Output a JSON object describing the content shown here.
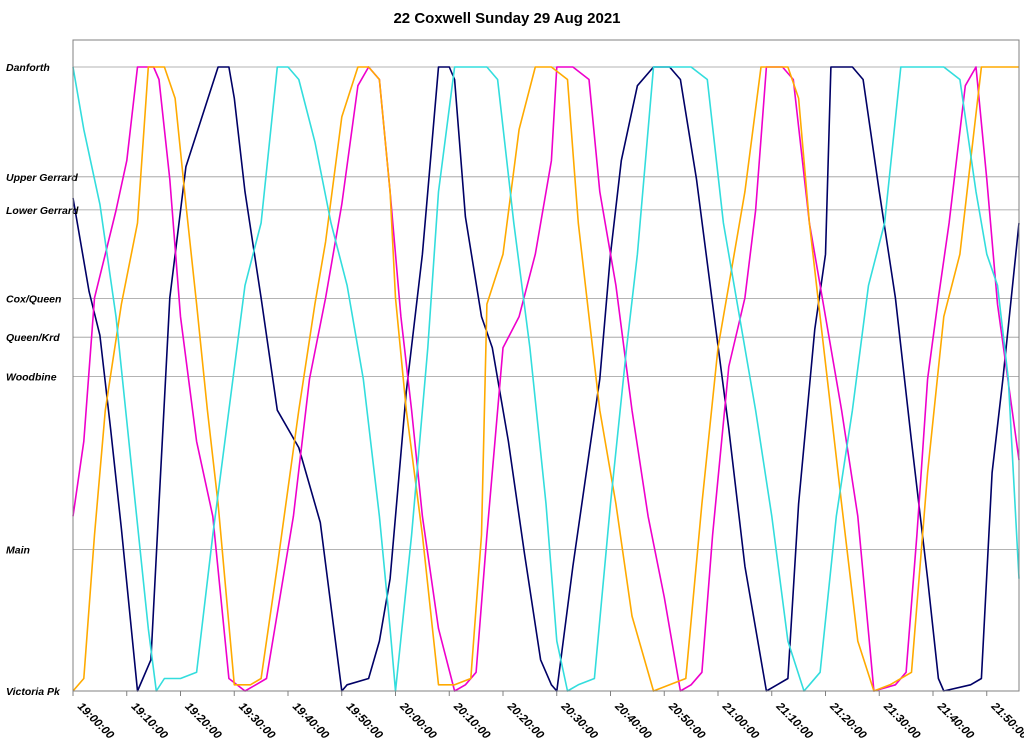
{
  "chart_data": {
    "type": "line",
    "title": "22 Coxwell Sunday 29 Aug 2021",
    "xlabel": "",
    "ylabel": "",
    "xlim": [
      "19:00:00",
      "21:56:00"
    ],
    "x_ticks": [
      "19:00:00",
      "19:10:00",
      "19:20:00",
      "19:30:00",
      "19:40:00",
      "19:50:00",
      "20:00:00",
      "20:10:00",
      "20:20:00",
      "20:30:00",
      "20:40:00",
      "20:50:00",
      "21:00:00",
      "21:10:00",
      "21:20:00",
      "21:30:00",
      "21:40:00",
      "21:50:00"
    ],
    "y_stops": [
      {
        "name": "Danforth",
        "pos": 0
      },
      {
        "name": "Upper Gerrard",
        "pos": 0.176
      },
      {
        "name": "Lower Gerrard",
        "pos": 0.229
      },
      {
        "name": "Cox/Queen",
        "pos": 0.371
      },
      {
        "name": "Queen/Krd",
        "pos": 0.433
      },
      {
        "name": "Woodbine",
        "pos": 0.496
      },
      {
        "name": "Main",
        "pos": 0.773
      },
      {
        "name": "Victoria Pk",
        "pos": 1.0
      }
    ],
    "grid": true,
    "legend": "none",
    "series": [
      {
        "color": "#000066",
        "x": [
          "19:00:00",
          "19:03:00",
          "19:05:00",
          "19:07:00",
          "19:09:00",
          "19:12:00",
          "19:13:00",
          "19:14:30",
          "19:16:00",
          "19:18:00",
          "19:21:00",
          "19:24:00",
          "19:27:00",
          "19:29:00",
          "19:30:00",
          "19:32:00",
          "19:35:00",
          "19:38:00",
          "19:42:00",
          "19:46:00",
          "19:50:00",
          "19:51:00",
          "19:55:00",
          "19:57:00",
          "19:59:00",
          "20:02:00",
          "20:05:00",
          "20:08:00",
          "20:10:00",
          "20:11:00",
          "20:13:00",
          "20:16:00",
          "20:18:00",
          "20:21:00",
          "20:24:00",
          "20:27:00",
          "20:29:00",
          "20:30:00",
          "20:33:00",
          "20:36:00",
          "20:38:00",
          "20:40:00",
          "20:42:00",
          "20:45:00",
          "20:48:00",
          "20:51:00",
          "20:53:00",
          "20:56:00",
          "20:59:00",
          "21:02:00",
          "21:05:00",
          "21:09:00",
          "21:11:00",
          "21:13:00",
          "21:15:00",
          "21:18:00",
          "21:20:00",
          "21:21:00",
          "21:25:00",
          "21:27:00",
          "21:30:00",
          "21:33:00",
          "21:36:00",
          "21:39:00",
          "21:41:00",
          "21:42:00",
          "21:47:00",
          "21:49:00",
          "21:51:00",
          "21:53:00",
          "21:56:00"
        ],
        "y": [
          0.21,
          0.36,
          0.43,
          0.58,
          0.74,
          1.0,
          0.98,
          0.95,
          0.7,
          0.37,
          0.16,
          0.08,
          0.0,
          0.0,
          0.05,
          0.2,
          0.37,
          0.55,
          0.61,
          0.73,
          1.0,
          0.99,
          0.98,
          0.92,
          0.82,
          0.52,
          0.3,
          0.0,
          0.0,
          0.02,
          0.24,
          0.4,
          0.45,
          0.6,
          0.78,
          0.95,
          0.99,
          1.0,
          0.8,
          0.62,
          0.5,
          0.3,
          0.15,
          0.03,
          0.0,
          0.0,
          0.02,
          0.18,
          0.38,
          0.58,
          0.8,
          1.0,
          0.99,
          0.98,
          0.7,
          0.42,
          0.3,
          0.0,
          0.0,
          0.02,
          0.2,
          0.37,
          0.6,
          0.82,
          0.98,
          1.0,
          0.99,
          0.98,
          0.65,
          0.5,
          0.25
        ]
      },
      {
        "color": "#ee00cc",
        "x": [
          "19:00:00",
          "19:02:00",
          "19:04:00",
          "19:06:00",
          "19:08:00",
          "19:10:00",
          "19:12:00",
          "19:15:00",
          "19:16:00",
          "19:18:00",
          "19:20:00",
          "19:23:00",
          "19:26:00",
          "19:29:00",
          "19:32:00",
          "19:34:00",
          "19:36:00",
          "19:41:00",
          "19:44:00",
          "19:47:00",
          "19:50:00",
          "19:53:00",
          "19:55:00",
          "19:57:00",
          "19:59:00",
          "20:01:00",
          "20:03:00",
          "20:05:00",
          "20:08:00",
          "20:11:00",
          "20:13:00",
          "20:15:00",
          "20:17:00",
          "20:20:00",
          "20:23:00",
          "20:26:00",
          "20:29:00",
          "20:30:00",
          "20:33:00",
          "20:36:00",
          "20:38:00",
          "20:41:00",
          "20:44:00",
          "20:47:00",
          "20:50:00",
          "20:53:00",
          "20:55:00",
          "20:57:00",
          "20:59:00",
          "21:02:00",
          "21:05:00",
          "21:07:00",
          "21:09:00",
          "21:12:00",
          "21:14:00",
          "21:17:00",
          "21:20:00",
          "21:23:00",
          "21:26:00",
          "21:29:00",
          "21:33:00",
          "21:35:00",
          "21:37:00",
          "21:39:00",
          "21:41:00",
          "21:43:00",
          "21:46:00",
          "21:48:00",
          "21:50:00",
          "21:52:00",
          "21:56:00"
        ],
        "y": [
          0.72,
          0.6,
          0.37,
          0.3,
          0.23,
          0.15,
          0.0,
          0.0,
          0.02,
          0.18,
          0.4,
          0.6,
          0.72,
          0.98,
          1.0,
          0.99,
          0.98,
          0.72,
          0.5,
          0.37,
          0.22,
          0.03,
          0.0,
          0.02,
          0.2,
          0.4,
          0.55,
          0.72,
          0.9,
          1.0,
          0.99,
          0.97,
          0.75,
          0.45,
          0.4,
          0.3,
          0.15,
          0.0,
          0.0,
          0.02,
          0.2,
          0.35,
          0.55,
          0.72,
          0.85,
          1.0,
          0.99,
          0.97,
          0.75,
          0.48,
          0.37,
          0.23,
          0.0,
          0.0,
          0.02,
          0.25,
          0.4,
          0.55,
          0.72,
          1.0,
          0.99,
          0.97,
          0.75,
          0.5,
          0.37,
          0.25,
          0.03,
          0.0,
          0.18,
          0.38,
          0.63
        ]
      },
      {
        "color": "#ffaa00",
        "x": [
          "19:00:00",
          "19:02:00",
          "19:04:00",
          "19:06:00",
          "19:09:00",
          "19:12:00",
          "19:14:00",
          "19:16:00",
          "19:17:00",
          "19:19:00",
          "19:21:00",
          "19:23:00",
          "19:25:00",
          "19:27:00",
          "19:30:00",
          "19:33:00",
          "19:35:00",
          "19:38:00",
          "19:42:00",
          "19:45:00",
          "19:47:00",
          "19:50:00",
          "19:53:00",
          "19:55:00",
          "19:57:00",
          "19:59:00",
          "20:00:00",
          "20:02:00",
          "20:05:00",
          "20:08:00",
          "20:11:00",
          "20:14:00",
          "20:16:00",
          "20:17:00",
          "20:20:00",
          "20:23:00",
          "20:26:00",
          "20:29:00",
          "20:32:00",
          "20:34:00",
          "20:36:00",
          "20:38:00",
          "20:41:00",
          "20:44:00",
          "20:48:00",
          "20:51:00",
          "20:54:00",
          "20:57:00",
          "21:00:00",
          "21:02:00",
          "21:05:00",
          "21:08:00",
          "21:11:00",
          "21:13:00",
          "21:15:00",
          "21:17:00",
          "21:19:00",
          "21:21:00",
          "21:23:00",
          "21:26:00",
          "21:29:00",
          "21:32:00",
          "21:36:00",
          "21:39:00",
          "21:42:00",
          "21:45:00",
          "21:47:00",
          "21:49:00",
          "21:51:00",
          "21:56:00"
        ],
        "y": [
          1.0,
          0.98,
          0.75,
          0.55,
          0.38,
          0.25,
          0.0,
          0.0,
          0.0,
          0.05,
          0.22,
          0.38,
          0.55,
          0.7,
          0.99,
          0.99,
          0.98,
          0.8,
          0.55,
          0.38,
          0.28,
          0.08,
          0.0,
          0.0,
          0.02,
          0.2,
          0.37,
          0.55,
          0.75,
          0.99,
          0.99,
          0.98,
          0.75,
          0.38,
          0.3,
          0.1,
          0.0,
          0.0,
          0.02,
          0.25,
          0.4,
          0.55,
          0.7,
          0.88,
          1.0,
          0.99,
          0.98,
          0.7,
          0.45,
          0.35,
          0.2,
          0.0,
          0.0,
          0.0,
          0.05,
          0.25,
          0.4,
          0.55,
          0.7,
          0.92,
          1.0,
          0.99,
          0.97,
          0.65,
          0.4,
          0.3,
          0.15,
          0.0,
          0.0,
          0.0
        ]
      },
      {
        "color": "#33dddd",
        "x": [
          "19:00:00",
          "19:02:00",
          "19:05:00",
          "19:08:00",
          "19:11:00",
          "19:14:00",
          "19:15:30",
          "19:17:00",
          "19:20:00",
          "19:23:00",
          "19:26:00",
          "19:29:00",
          "19:32:00",
          "19:35:00",
          "19:38:00",
          "19:40:00",
          "19:42:00",
          "19:45:00",
          "19:48:00",
          "19:51:00",
          "19:54:00",
          "19:57:00",
          "19:59:00",
          "20:00:00",
          "20:03:00",
          "20:06:00",
          "20:08:00",
          "20:11:00",
          "20:14:00",
          "20:17:00",
          "20:19:00",
          "20:22:00",
          "20:25:00",
          "20:28:00",
          "20:30:00",
          "20:32:00",
          "20:34:00",
          "20:37:00",
          "20:40:00",
          "20:43:00",
          "20:45:00",
          "20:48:00",
          "20:51:00",
          "20:55:00",
          "20:58:00",
          "21:01:00",
          "21:04:00",
          "21:07:00",
          "21:10:00",
          "21:13:00",
          "21:16:00",
          "21:17:00",
          "21:19:00",
          "21:22:00",
          "21:25:00",
          "21:28:00",
          "21:31:00",
          "21:34:00",
          "21:38:00",
          "21:42:00",
          "21:45:00",
          "21:48:00",
          "21:50:00",
          "21:52:00",
          "21:54:00",
          "21:56:00"
        ],
        "y": [
          0.0,
          0.1,
          0.22,
          0.4,
          0.65,
          0.9,
          1.0,
          0.98,
          0.98,
          0.97,
          0.75,
          0.55,
          0.35,
          0.25,
          0.0,
          0.0,
          0.02,
          0.12,
          0.25,
          0.35,
          0.5,
          0.72,
          0.9,
          1.0,
          0.75,
          0.45,
          0.2,
          0.0,
          0.0,
          0.0,
          0.02,
          0.25,
          0.45,
          0.7,
          0.92,
          1.0,
          0.99,
          0.98,
          0.7,
          0.45,
          0.3,
          0.0,
          0.0,
          0.0,
          0.02,
          0.25,
          0.4,
          0.55,
          0.72,
          0.92,
          1.0,
          0.99,
          0.97,
          0.72,
          0.55,
          0.35,
          0.25,
          0.0,
          0.0,
          0.0,
          0.02,
          0.2,
          0.3,
          0.35,
          0.5,
          0.82
        ]
      }
    ]
  }
}
